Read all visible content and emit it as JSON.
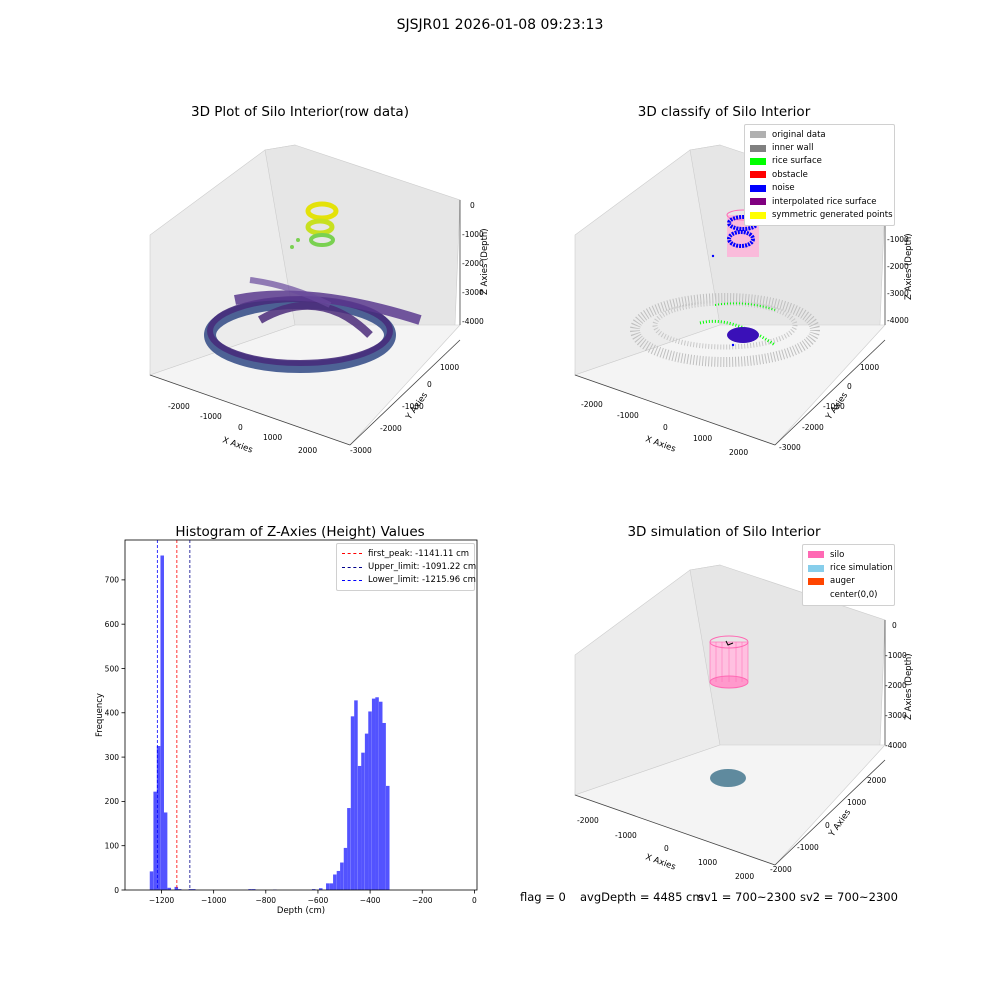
{
  "suptitle": "SJSJR01 2026-01-08 09:23:13",
  "panels": {
    "raw": {
      "title": "3D Plot of Silo Interior(row data)",
      "xlabel": "X Axies",
      "ylabel": "Y Axies",
      "zlabel": "Z Axies (Depth)",
      "xticks": [
        "-2000",
        "-1000",
        "0",
        "1000",
        "2000"
      ],
      "yticks": [
        "1000",
        "0",
        "-1000",
        "-2000",
        "-3000"
      ],
      "zticks": [
        "0",
        "-1000",
        "-2000",
        "-3000",
        "-4000"
      ]
    },
    "classify": {
      "title": "3D classify of Silo Interior",
      "xlabel": "X Axies",
      "ylabel": "Y Axies",
      "zlabel": "Z Axies (Depth)",
      "xticks": [
        "-2000",
        "-1000",
        "0",
        "1000",
        "2000"
      ],
      "yticks": [
        "1000",
        "0",
        "-1000",
        "-2000",
        "-3000"
      ],
      "zticks": [
        "-1000",
        "-2000",
        "-3000",
        "-4000"
      ],
      "legend": [
        {
          "label": "original data",
          "color": "#b0b0b0"
        },
        {
          "label": "inner wall",
          "color": "#808080"
        },
        {
          "label": "rice surface",
          "color": "#00ff00"
        },
        {
          "label": "obstacle",
          "color": "#ff0000"
        },
        {
          "label": "noise",
          "color": "#0000ff"
        },
        {
          "label": "interpolated rice surface",
          "color": "#800080"
        },
        {
          "label": "symmetric generated points",
          "color": "#ffff00"
        }
      ]
    },
    "simulation": {
      "title": "3D simulation of Silo Interior",
      "xlabel": "X Axies",
      "ylabel": "Y Axies",
      "zlabel": "Z Axies (Depth)",
      "xticks": [
        "-2000",
        "-1000",
        "0",
        "1000",
        "2000"
      ],
      "yticks": [
        "2000",
        "1000",
        "0",
        "-1000",
        "-2000"
      ],
      "zticks": [
        "0",
        "-1000",
        "-2000",
        "-3000",
        "-4000"
      ],
      "legend": [
        {
          "label": "silo",
          "color": "#ff69b4"
        },
        {
          "label": "rice simulation",
          "color": "#87ceeb"
        },
        {
          "label": "auger",
          "color": "#ff4500"
        },
        {
          "label": "center(0,0)",
          "color": "#ffffff"
        }
      ]
    }
  },
  "footer": {
    "flag": "flag = 0",
    "avgdepth": "avgDepth = 4485 cm",
    "sv1": "sv1 = 700~2300",
    "sv2": "sv2 = 700~2300"
  },
  "chart_data": [
    {
      "type": "bar",
      "title": "Histogram of Z-Axies (Height) Values",
      "xlabel": "Depth (cm)",
      "ylabel": "Frequency",
      "xlim": [
        -1340,
        10
      ],
      "ylim": [
        0,
        790
      ],
      "xticks": [
        -1200,
        -1000,
        -800,
        -600,
        -400,
        -200,
        0
      ],
      "yticks": [
        0,
        100,
        200,
        300,
        400,
        500,
        600,
        700
      ],
      "bin_width": 13.5,
      "bins": [
        {
          "x": -1245,
          "y": 42
        },
        {
          "x": -1231,
          "y": 222
        },
        {
          "x": -1218,
          "y": 325
        },
        {
          "x": -1204,
          "y": 755
        },
        {
          "x": -1191,
          "y": 175
        },
        {
          "x": -1177,
          "y": 5
        },
        {
          "x": -1150,
          "y": 7
        },
        {
          "x": -1137,
          "y": 2
        },
        {
          "x": -1096,
          "y": 2
        },
        {
          "x": -1083,
          "y": 2
        },
        {
          "x": -867,
          "y": 2
        },
        {
          "x": -853,
          "y": 2
        },
        {
          "x": -772,
          "y": 1
        },
        {
          "x": -623,
          "y": 2
        },
        {
          "x": -596,
          "y": 4
        },
        {
          "x": -569,
          "y": 15
        },
        {
          "x": -555,
          "y": 15
        },
        {
          "x": -542,
          "y": 35
        },
        {
          "x": -528,
          "y": 43
        },
        {
          "x": -515,
          "y": 62
        },
        {
          "x": -501,
          "y": 95
        },
        {
          "x": -488,
          "y": 185
        },
        {
          "x": -474,
          "y": 392
        },
        {
          "x": -461,
          "y": 428
        },
        {
          "x": -447,
          "y": 280
        },
        {
          "x": -434,
          "y": 310
        },
        {
          "x": -420,
          "y": 353
        },
        {
          "x": -407,
          "y": 403
        },
        {
          "x": -393,
          "y": 432
        },
        {
          "x": -380,
          "y": 435
        },
        {
          "x": -366,
          "y": 425
        },
        {
          "x": -353,
          "y": 377
        },
        {
          "x": -339,
          "y": 235
        }
      ],
      "vlines": [
        {
          "x": -1141.11,
          "label": "first_peak: -1141.11 cm",
          "color": "#ff0000"
        },
        {
          "x": -1091.22,
          "label": "Upper_limit: -1091.22 cm",
          "color": "#00008b"
        },
        {
          "x": -1215.96,
          "label": "Lower_limit: -1215.96 cm",
          "color": "#0000ff"
        }
      ],
      "bar_color": "#4a4aff",
      "legend_position": "top-right"
    }
  ]
}
